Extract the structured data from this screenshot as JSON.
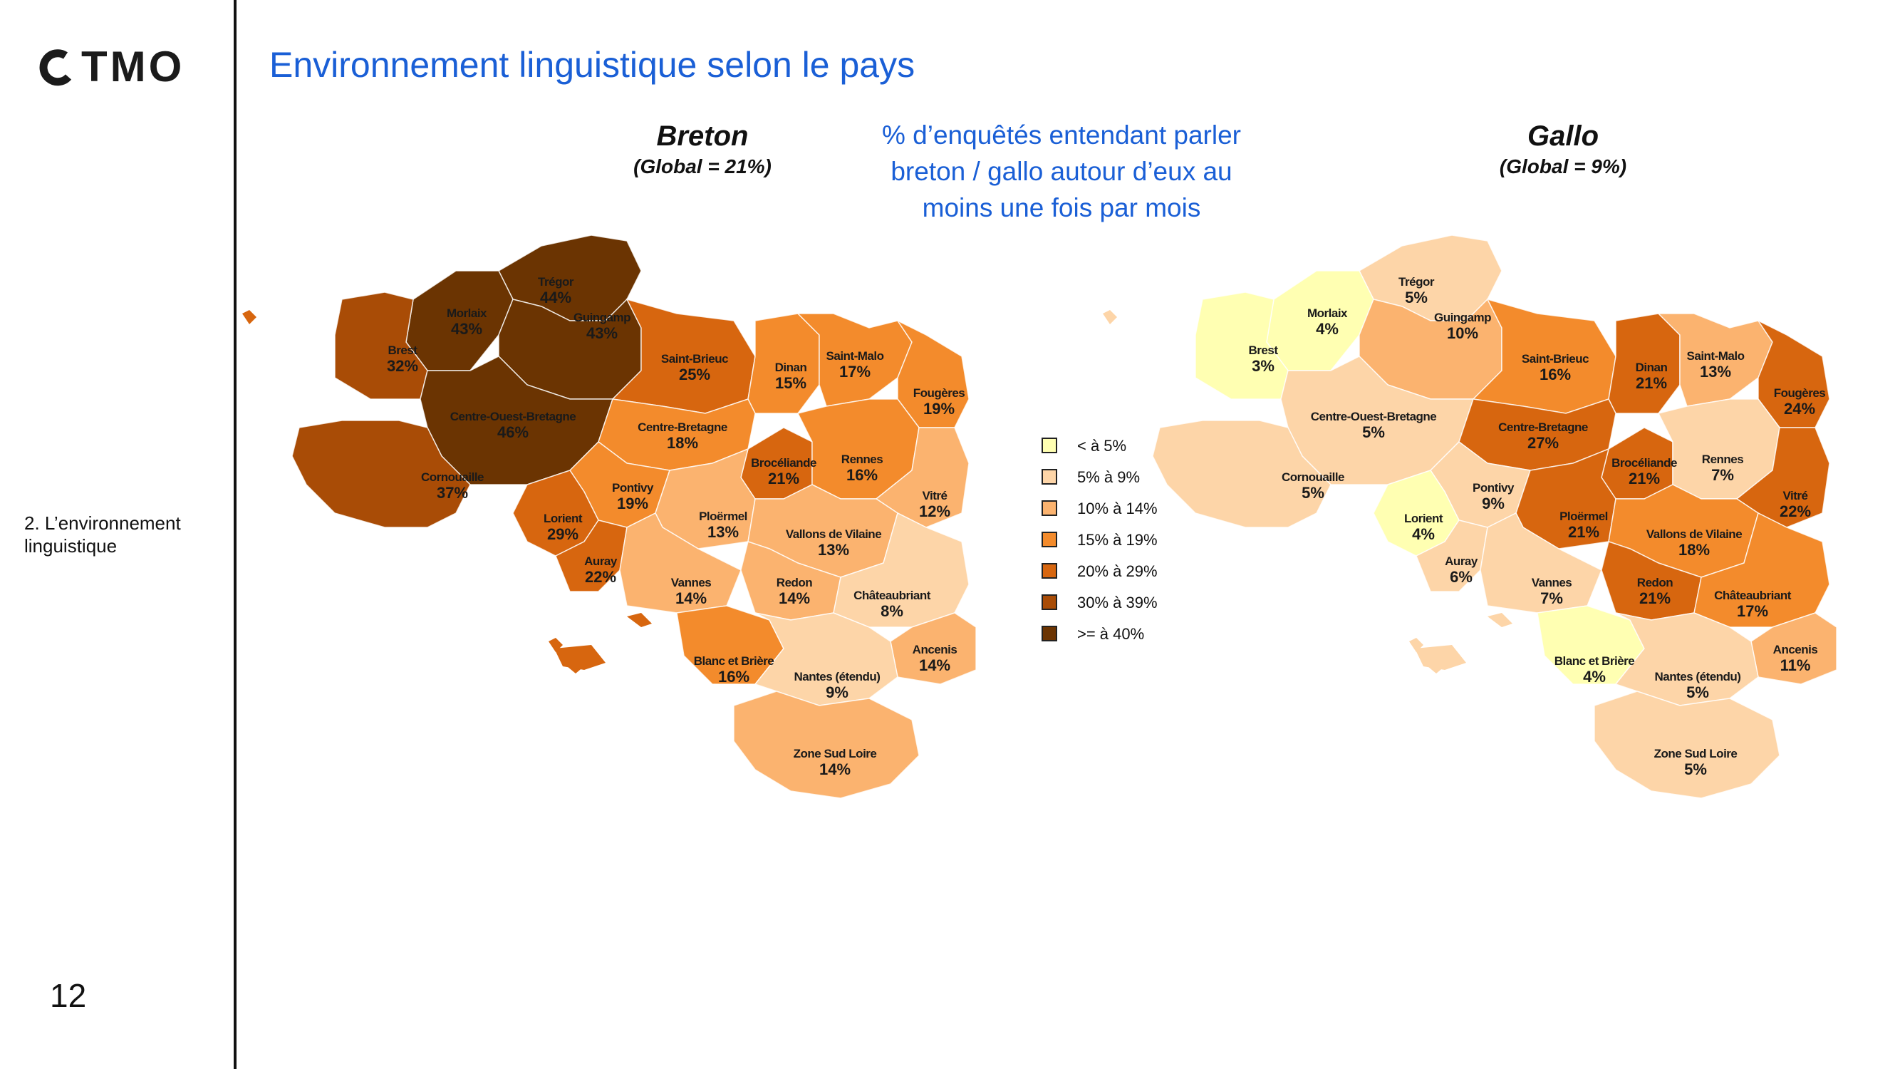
{
  "brand": {
    "logo_text": "TMO"
  },
  "header": {
    "title": "Environnement linguistique selon le pays"
  },
  "subtitle_lines": [
    "% d’enquêtés entendant parler",
    "breton / gallo autour d’eux au",
    "moins une fois par mois"
  ],
  "section_label": "2. L’environnement linguistique",
  "page_number": "12",
  "colors": {
    "title_blue": "#1a5fd6",
    "class_lt5": "#ffffb2",
    "class_5_9": "#fdd5a8",
    "class_10_14": "#fbb36f",
    "class_15_19": "#f38b2c",
    "class_20_29": "#d7660f",
    "class_30_39": "#a94c06",
    "class_gte40": "#6b3402"
  },
  "legend": [
    {
      "label": "< à 5%",
      "color": "#ffffb2"
    },
    {
      "label": "5% à 9%",
      "color": "#fdd5a8"
    },
    {
      "label": "10% à 14%",
      "color": "#fbb36f"
    },
    {
      "label": "15% à 19%",
      "color": "#f38b2c"
    },
    {
      "label": "20% à 29%",
      "color": "#d7660f"
    },
    {
      "label": "30% à 39%",
      "color": "#a94c06"
    },
    {
      "label": ">= à 40%",
      "color": "#6b3402"
    }
  ],
  "maps": [
    {
      "name": "Breton",
      "global": "(Global = 21%)",
      "zones": [
        {
          "name": "Trégor",
          "value": "44%"
        },
        {
          "name": "Morlaix",
          "value": "43%"
        },
        {
          "name": "Guingamp",
          "value": "43%"
        },
        {
          "name": "Brest",
          "value": "32%"
        },
        {
          "name": "Saint-Brieuc",
          "value": "25%"
        },
        {
          "name": "Dinan",
          "value": "15%"
        },
        {
          "name": "Saint-Malo",
          "value": "17%"
        },
        {
          "name": "Fougères",
          "value": "19%"
        },
        {
          "name": "Centre-Ouest-Bretagne",
          "value": "46%"
        },
        {
          "name": "Centre-Bretagne",
          "value": "18%"
        },
        {
          "name": "Brocéliande",
          "value": "21%"
        },
        {
          "name": "Rennes",
          "value": "16%"
        },
        {
          "name": "Vitré",
          "value": "12%"
        },
        {
          "name": "Cornouaille",
          "value": "37%"
        },
        {
          "name": "Pontivy",
          "value": "19%"
        },
        {
          "name": "Ploërmel",
          "value": "13%"
        },
        {
          "name": "Lorient",
          "value": "29%"
        },
        {
          "name": "Vallons de Vilaine",
          "value": "13%"
        },
        {
          "name": "Auray",
          "value": "22%"
        },
        {
          "name": "Vannes",
          "value": "14%"
        },
        {
          "name": "Redon",
          "value": "14%"
        },
        {
          "name": "Châteaubriant",
          "value": "8%"
        },
        {
          "name": "Ancenis",
          "value": "14%"
        },
        {
          "name": "Blanc et Brière",
          "value": "16%"
        },
        {
          "name": "Nantes (étendu)",
          "value": "9%"
        },
        {
          "name": "Zone Sud Loire",
          "value": "14%"
        }
      ]
    },
    {
      "name": "Gallo",
      "global": "(Global = 9%)",
      "zones": [
        {
          "name": "Trégor",
          "value": "5%"
        },
        {
          "name": "Morlaix",
          "value": "4%"
        },
        {
          "name": "Guingamp",
          "value": "10%"
        },
        {
          "name": "Brest",
          "value": "3%"
        },
        {
          "name": "Saint-Brieuc",
          "value": "16%"
        },
        {
          "name": "Dinan",
          "value": "21%"
        },
        {
          "name": "Saint-Malo",
          "value": "13%"
        },
        {
          "name": "Fougères",
          "value": "24%"
        },
        {
          "name": "Centre-Ouest-Bretagne",
          "value": "5%"
        },
        {
          "name": "Centre-Bretagne",
          "value": "27%"
        },
        {
          "name": "Brocéliande",
          "value": "21%"
        },
        {
          "name": "Rennes",
          "value": "7%"
        },
        {
          "name": "Vitré",
          "value": "22%"
        },
        {
          "name": "Cornouaille",
          "value": "5%"
        },
        {
          "name": "Pontivy",
          "value": "9%"
        },
        {
          "name": "Ploërmel",
          "value": "21%"
        },
        {
          "name": "Lorient",
          "value": "4%"
        },
        {
          "name": "Vallons de Vilaine",
          "value": "18%"
        },
        {
          "name": "Auray",
          "value": "6%"
        },
        {
          "name": "Vannes",
          "value": "7%"
        },
        {
          "name": "Redon",
          "value": "21%"
        },
        {
          "name": "Châteaubriant",
          "value": "17%"
        },
        {
          "name": "Ancenis",
          "value": "11%"
        },
        {
          "name": "Blanc et Brière",
          "value": "4%"
        },
        {
          "name": "Nantes (étendu)",
          "value": "5%"
        },
        {
          "name": "Zone Sud Loire",
          "value": "5%"
        }
      ]
    }
  ]
}
